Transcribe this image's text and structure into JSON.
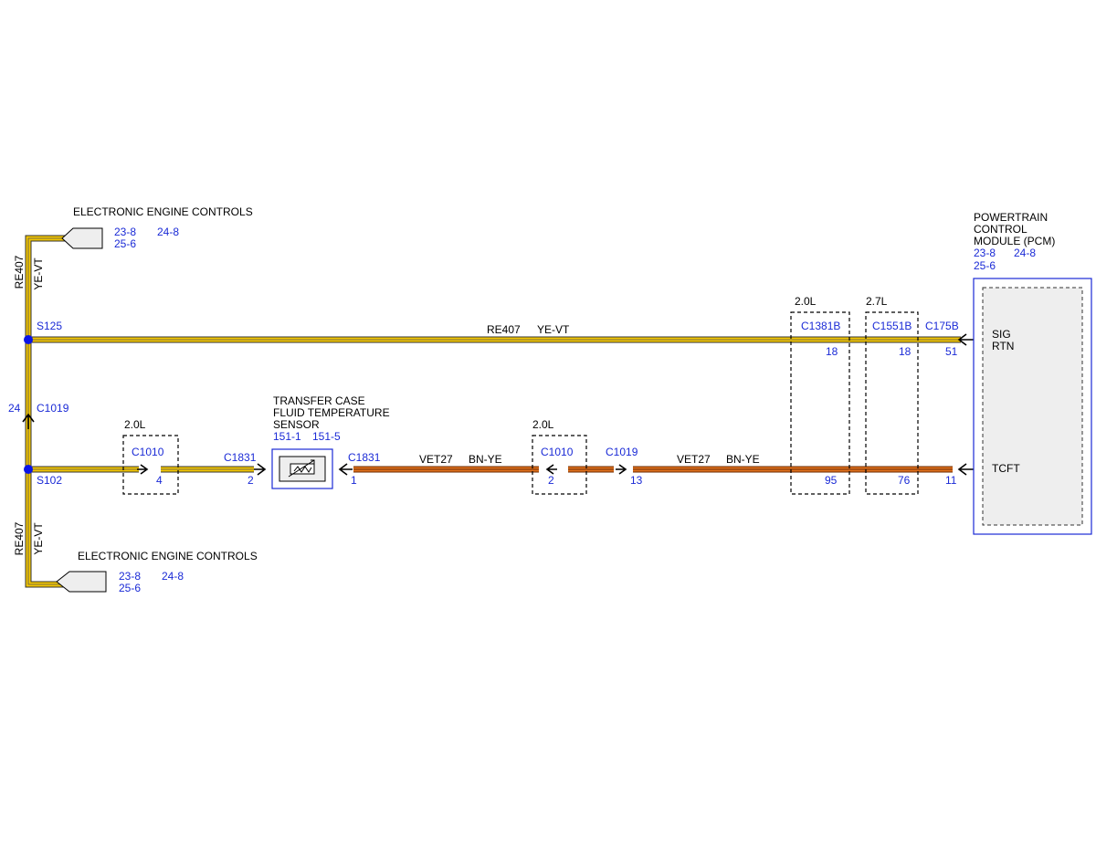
{
  "eec_top": {
    "title": "ELECTRONIC ENGINE CONTROLS",
    "refs": [
      "23-8",
      "24-8",
      "25-6"
    ]
  },
  "eec_bottom": {
    "title": "ELECTRONIC ENGINE CONTROLS",
    "refs": [
      "23-8",
      "24-8",
      "25-6"
    ]
  },
  "left_riser_top": {
    "circuit": "RE407",
    "color": "YE-VT"
  },
  "left_riser_bottom": {
    "circuit": "RE407",
    "color": "YE-VT"
  },
  "splices": {
    "upper": "S125",
    "lower": "S102"
  },
  "c1019_left": {
    "name": "C1019",
    "pin": "24"
  },
  "top_wire": {
    "circuit": "RE407",
    "color": "YE-VT"
  },
  "top_connectors": [
    {
      "variant": "2.0L",
      "name": "C1381B",
      "pin": "18",
      "pin_lower": "95"
    },
    {
      "variant": "2.7L",
      "name": "C1551B",
      "pin": "18",
      "pin_lower": "76"
    },
    {
      "name": "C175B",
      "pin": "51",
      "pin_lower": "11"
    }
  ],
  "bottom_left": {
    "variant": "2.0L",
    "c1010": "C1010",
    "c1010_pin": "4",
    "c1831": "C1831",
    "c1831_pin": "2"
  },
  "sensor": {
    "title_lines": [
      "TRANSFER CASE",
      "FLUID TEMPERATURE",
      "SENSOR"
    ],
    "refs": [
      "151-1",
      "151-5"
    ],
    "connector": "C1831",
    "pin": "1"
  },
  "bottom_wire_segments": [
    {
      "circuit": "VET27",
      "color": "BN-YE"
    },
    {
      "circuit": "VET27",
      "color": "BN-YE"
    }
  ],
  "mid_connectors": {
    "variant": "2.0L",
    "c1010": "C1010",
    "c1010_pin": "2",
    "c1019": "C1019",
    "c1019_pin": "13"
  },
  "pcm": {
    "title_lines": [
      "POWERTRAIN",
      "CONTROL",
      "MODULE (PCM)"
    ],
    "refs": [
      "23-8",
      "24-8",
      "25-6"
    ],
    "pins": [
      "SIG",
      "RTN",
      "TCFT"
    ]
  }
}
